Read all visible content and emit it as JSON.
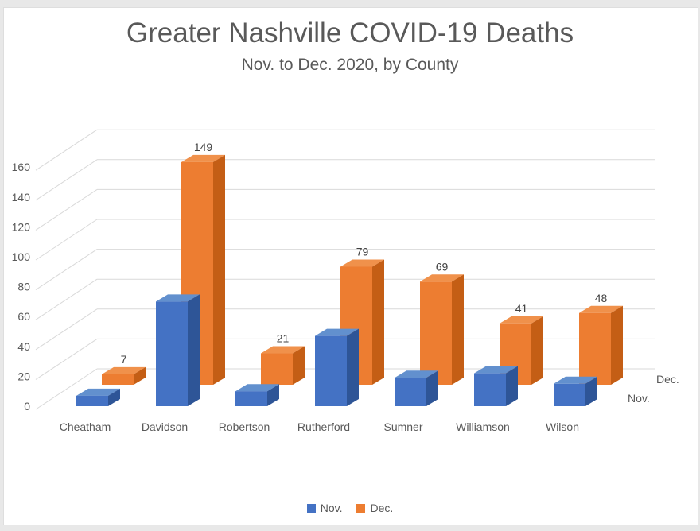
{
  "title": "Greater Nashville COVID-19 Deaths",
  "subtitle": "Nov. to Dec. 2020, by County",
  "colors": {
    "title_text": "#595959",
    "axis_text": "#595959",
    "data_label_text": "#404040",
    "gridline": "#d9d9d9",
    "card_background": "#ffffff",
    "page_background": "#e8e8e8",
    "nov_front": "#4472c4",
    "nov_top": "#6290ce",
    "nov_side": "#2e5597",
    "dec_front": "#ed7d31",
    "dec_top": "#f0914b",
    "dec_side": "#c45e15"
  },
  "chart_data": {
    "type": "bar",
    "style": "3d-column",
    "title": "Greater Nashville COVID-19 Deaths",
    "subtitle": "Nov. to Dec. 2020, by County",
    "categories": [
      "Cheatham",
      "Davidson",
      "Robertson",
      "Rutherford",
      "Sumner",
      "Williamson",
      "Wilson"
    ],
    "series": [
      {
        "name": "Nov.",
        "values": [
          7,
          70,
          10,
          47,
          19,
          22,
          15
        ],
        "values_estimated": true,
        "data_labels_shown": false,
        "color": "#4472c4"
      },
      {
        "name": "Dec.",
        "values": [
          7,
          149,
          21,
          79,
          69,
          41,
          48
        ],
        "values_estimated": false,
        "data_labels_shown": true,
        "data_labels": [
          "7",
          "149",
          "21",
          "79",
          "69",
          "41",
          "48"
        ],
        "color": "#ed7d31"
      }
    ],
    "value_axis": {
      "min": 0,
      "max": 160,
      "tick_step": 20,
      "ticks": [
        0,
        20,
        40,
        60,
        80,
        100,
        120,
        140,
        160
      ]
    },
    "depth_axis_labels": [
      "Nov.",
      "Dec."
    ],
    "gridlines": true,
    "legend_position": "bottom",
    "legend_entries": [
      {
        "label": "Nov.",
        "color": "#4472c4"
      },
      {
        "label": "Dec.",
        "color": "#ed7d31"
      }
    ]
  }
}
